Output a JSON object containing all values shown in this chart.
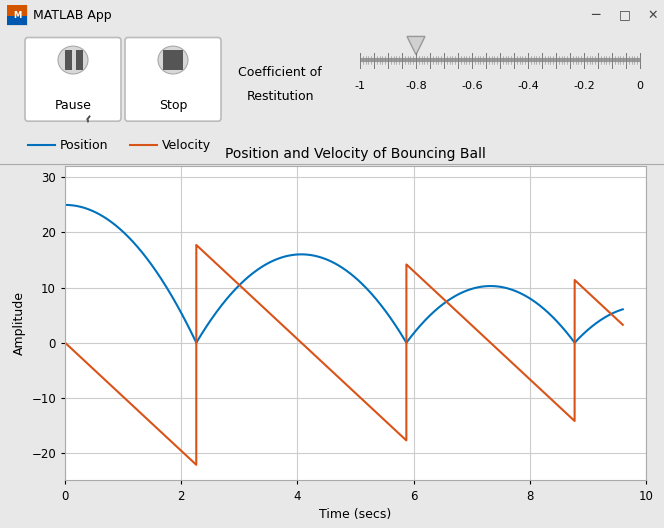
{
  "title": "Position and Velocity of Bouncing Ball",
  "xlabel": "Time (secs)",
  "ylabel": "Amplitude",
  "xlim": [
    0,
    10
  ],
  "ylim": [
    -25,
    32
  ],
  "yticks": [
    -20,
    -10,
    0,
    10,
    20,
    30
  ],
  "xticks": [
    0,
    2,
    4,
    6,
    8,
    10
  ],
  "position_color": "#0072BD",
  "velocity_color": "#D95319",
  "bg_color": "#E8E8E8",
  "plot_bg": "#FFFFFF",
  "window_title": "MATLAB App",
  "legend_labels": [
    "Position",
    "Velocity"
  ],
  "slider_value": -0.8,
  "slider_min": -1,
  "slider_max": 0,
  "slider_ticks": [
    -1,
    -0.8,
    -0.6,
    -0.4,
    -0.2,
    0
  ],
  "pause_label": "Pause",
  "stop_label": "Stop",
  "coeff_restitution": 0.8,
  "gravity": 9.81,
  "initial_height": 25,
  "initial_velocity": 0,
  "t_end": 9.6,
  "titlebar_color": "#F0F0F0",
  "button_edge_color": "#BBBBBB",
  "grid_color": "#CCCCCC"
}
